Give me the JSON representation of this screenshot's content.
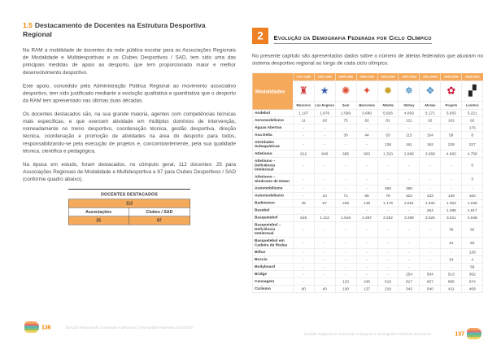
{
  "left_page": {
    "page_number": "136",
    "title_number": "1.5",
    "title": "Destacamento de Docentes na Estrutura Desportiva Regional",
    "paragraphs": [
      "Na RAM a mobilidade de docentes da rede pública escolar para as Associações Regionais de Modalidade e Multidesportivas e os Clubes Desportivos / SAD, tem sido uma das principais medidas de apoio ao desporto, que tem proporcionado maior e melhor desenvolvimento desportivo.",
      "Este apoio, concedido pela Administração Pública Regional ao movimento associativo desportivo, tem sido justificado mediante a evolução qualitativa e quantitativa que o desporto da RAM tem apresentado nas últimas duas décadas.",
      "Os docentes destacados são, na sua grande maioria, agentes com competências técnicas mais específicas, e que exercem atividade em múltiplos domínios de intervenção, nomeadamente no treino desportivo, coordenação técnica, gestão desportiva, direção técnica, coordenação e promoção de atividades na área do desporto para todos, responsabilizando-se pela execução de projetos e, concomitantemente, pela sua qualidade técnica, científica e pedagógica.",
      "Na época em estudo, foram destacados, no cômputo geral, 112 docentes: 25 para Associações Regionais de Modalidade e Multidesportiva e 87 para Clubes Desportivos / SAD (conforme quadro abaixo)."
    ],
    "table": {
      "caption": "DOCENTES DESTACADOS",
      "total": "112",
      "col1_label": "Associações",
      "col2_label": "Clubes / SAD",
      "col1_value": "25",
      "col2_value": "87"
    },
    "footer": "Direção Regional de Juventude e Desporto | Demografia Federada 2014/2015"
  },
  "right_page": {
    "page_number": "137",
    "chapter_number": "2",
    "title": "Evolução da Demografia Federada por Ciclo Olímpico",
    "intro": "No presente capítulo são apresentados dados sobre o número de atletas federados que atuaram no sistema desportivo regional ao longo de cada ciclo olímpico.",
    "footer": "Direção Regional de Juventude e Desporto | Demografia Federada 2014/2015",
    "table": {
      "header_col": "Modalidades",
      "cycles": [
        {
          "years": "1977-1980",
          "city": "Moscovo",
          "glyph": "♜",
          "color": "#cf3a3a"
        },
        {
          "years": "1981-1984",
          "city": "Los Angeles",
          "glyph": "★",
          "color": "#3a62b0"
        },
        {
          "years": "1985-1988",
          "city": "Seul",
          "glyph": "✺",
          "color": "#d94f30"
        },
        {
          "years": "1989-1992",
          "city": "Barcelona",
          "glyph": "✦",
          "color": "#e0452b"
        },
        {
          "years": "1993-1996",
          "city": "Atlanta",
          "glyph": "✹",
          "color": "#c9a227"
        },
        {
          "years": "1997-2000",
          "city": "Sidney",
          "glyph": "✵",
          "color": "#2a7ab5"
        },
        {
          "years": "2001-2004",
          "city": "Atenas",
          "glyph": "❖",
          "color": "#4a90c4"
        },
        {
          "years": "2005-2008",
          "city": "Pequim",
          "glyph": "✿",
          "color": "#c8102e"
        },
        {
          "years": "2009-2012",
          "city": "Londres",
          "glyph": "▞",
          "color": "#222222"
        }
      ],
      "rows": [
        {
          "label": "Andebol",
          "values": [
            "1.107",
            "1.876",
            "2.589",
            "3.680",
            "5.826",
            "4.893",
            "5.171",
            "5.955",
            "5.221"
          ]
        },
        {
          "label": "Aeromodelismo",
          "values": [
            "11",
            "28",
            "75",
            "82",
            "81",
            "121",
            "92",
            "102",
            "92"
          ]
        },
        {
          "label": "Águas Abertas",
          "values": [
            "-",
            "-",
            "-",
            "-",
            "-",
            "-",
            "-",
            "-",
            "176"
          ]
        },
        {
          "label": "Asa Delta",
          "values": [
            "-",
            "-",
            "30",
            "44",
            "53",
            "115",
            "104",
            "59",
            "8"
          ]
        },
        {
          "label": "Atividades Subaquáticas",
          "values": [
            "-",
            "-",
            "-",
            "-",
            "138",
            "161",
            "192",
            "228",
            "227"
          ]
        },
        {
          "label": "Atletismo",
          "values": [
            "912",
            "948",
            "695",
            "903",
            "1.310",
            "2.896",
            "3.668",
            "4.660",
            "4.758"
          ]
        },
        {
          "label": "Atletismo – Deficiência Intelectual",
          "values": [
            "-",
            "-",
            "-",
            "-",
            "-",
            "-",
            "-",
            "-",
            "5"
          ]
        },
        {
          "label": "Atletismo – Síndrome de Down",
          "values": [
            "-",
            "-",
            "-",
            "-",
            "-",
            "-",
            "-",
            "-",
            "3"
          ]
        },
        {
          "label": "Automobilismo",
          "values": [
            "-",
            "-",
            "-",
            "-",
            "359",
            "389",
            "-",
            "-",
            "-"
          ]
        },
        {
          "label": "Automodelismo",
          "values": [
            "-",
            "10",
            "71",
            "88",
            "76",
            "323",
            "433",
            "149",
            "160"
          ]
        },
        {
          "label": "Badminton",
          "values": [
            "35",
            "57",
            "228",
            "148",
            "1.179",
            "2.551",
            "1.632",
            "1.363",
            "1.048"
          ]
        },
        {
          "label": "Basebol",
          "values": [
            "-",
            "-",
            "-",
            "-",
            "-",
            "-",
            "264",
            "1.299",
            "1.817"
          ]
        },
        {
          "label": "Basquetebol",
          "values": [
            "626",
            "1.112",
            "1.518",
            "2.397",
            "3.252",
            "3.399",
            "3.625",
            "3.811",
            "4.648"
          ]
        },
        {
          "label": "Basquetebol – Deficiência Intelectual",
          "values": [
            "-",
            "-",
            "-",
            "-",
            "-",
            "-",
            "-",
            "36",
            "92"
          ]
        },
        {
          "label": "Basquetebol em Cadeira de Rodas",
          "values": [
            "-",
            "-",
            "-",
            "-",
            "-",
            "-",
            "-",
            "24",
            "50"
          ]
        },
        {
          "label": "Bilhar",
          "values": [
            "-",
            "-",
            "-",
            "-",
            "-",
            "-",
            "-",
            "-",
            "138"
          ]
        },
        {
          "label": "Boccia",
          "values": [
            "-",
            "-",
            "-",
            "-",
            "-",
            "-",
            "-",
            "34",
            "4"
          ]
        },
        {
          "label": "Bodyboard",
          "values": [
            "-",
            "-",
            "-",
            "-",
            "-",
            "-",
            "-",
            "-",
            "58"
          ]
        },
        {
          "label": "Bridge",
          "values": [
            "-",
            "-",
            "-",
            "-",
            "-",
            "254",
            "504",
            "513",
            "362"
          ]
        },
        {
          "label": "Canoagem",
          "values": [
            "-",
            "-",
            "123",
            "246",
            "518",
            "817",
            "607",
            "886",
            "974"
          ]
        },
        {
          "label": "Ciclismo",
          "values": [
            "90",
            "40",
            "100",
            "137",
            "219",
            "343",
            "540",
            "411",
            "468"
          ]
        }
      ]
    }
  },
  "brand_colors": [
    "#f2a25a",
    "#e8706d",
    "#58b7ae",
    "#8cbf6e",
    "#f2d05e"
  ]
}
